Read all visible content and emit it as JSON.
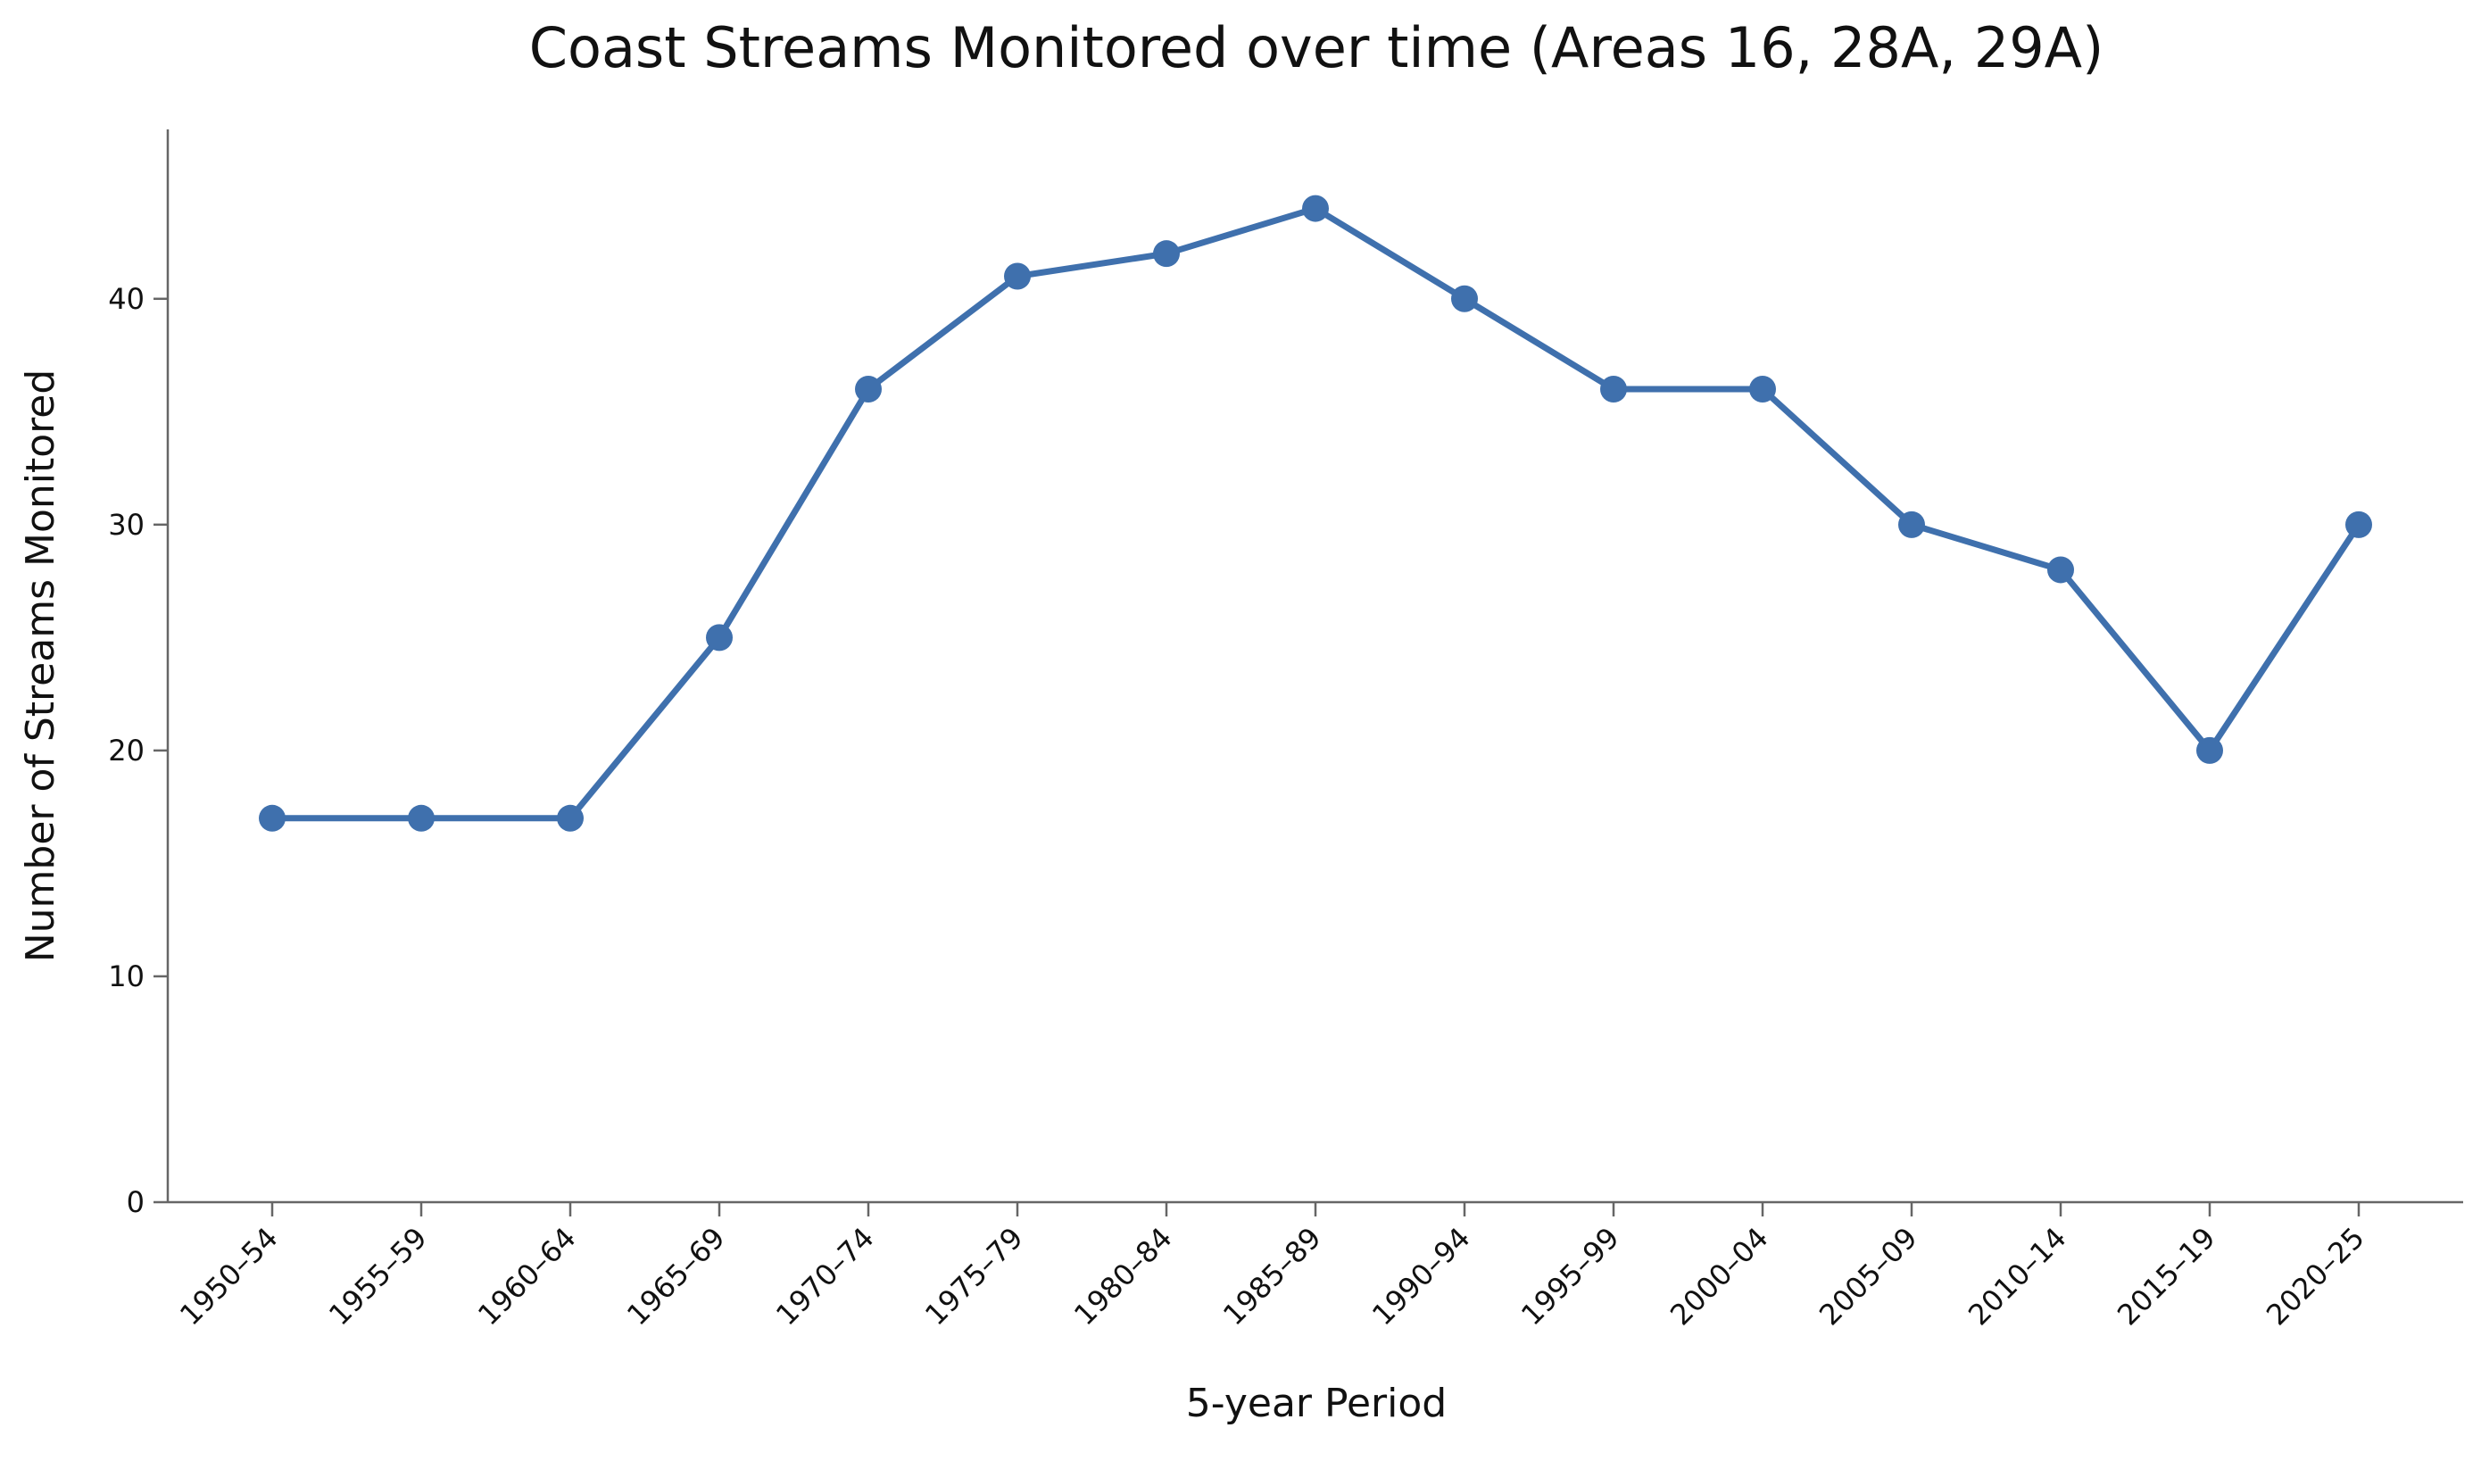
{
  "chart_data": {
    "type": "line",
    "title": "Coast Streams Monitored over time (Areas 16, 28A, 29A)",
    "xlabel": "5-year Period",
    "ylabel": "Number of Streams Monitored",
    "categories": [
      "1950–54",
      "1955–59",
      "1960–64",
      "1965–69",
      "1970–74",
      "1975–79",
      "1980–84",
      "1985–89",
      "1990–94",
      "1995–99",
      "2000–04",
      "2005–09",
      "2010–14",
      "2015–19",
      "2020–25"
    ],
    "values": [
      17,
      17,
      17,
      25,
      36,
      41,
      42,
      44,
      40,
      36,
      36,
      30,
      28,
      20,
      30
    ],
    "ylim": [
      0,
      47.5
    ],
    "yticks": [
      0,
      10,
      20,
      30,
      40
    ],
    "grid": false,
    "line_color": "#3f70ad"
  }
}
